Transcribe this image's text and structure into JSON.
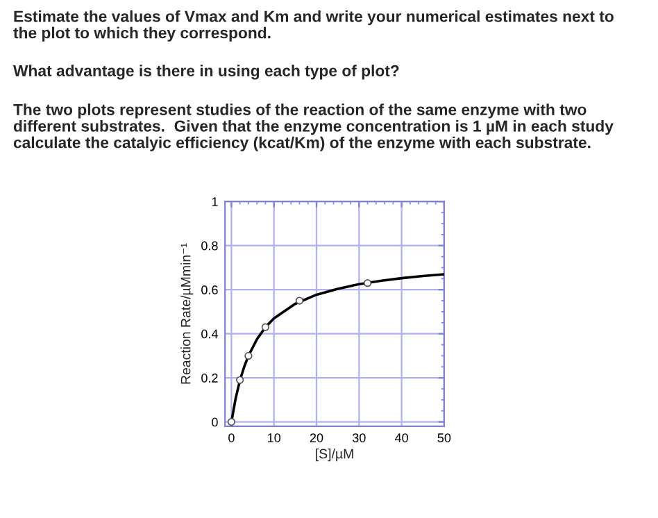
{
  "chart_data": {
    "type": "scatter",
    "annotations": [
      "Estimate the values of Vmax and Km and write your numerical estimates next to\nthe plot to which they correspond.",
      "What advantage is there in using each type of plot?",
      "The two plots represent studies of the reaction of the same enzyme with two\ndifferent substrates.  Given that the enzyme concentration is 1 µM in each study\ncalculate the catalyic efficiency (kcat/Km) of the enzyme with each substrate."
    ],
    "xlabel": "[S]/µM",
    "ylabel": "Reaction Rate/µMmin⁻¹",
    "series": [
      {
        "type": "line",
        "color": "#000000",
        "marker": "none",
        "x": [
          0,
          1,
          2,
          3,
          4,
          6,
          8,
          10,
          15,
          20,
          25,
          30,
          35,
          40,
          45,
          50
        ],
        "values": [
          0,
          0.107,
          0.188,
          0.25,
          0.3,
          0.375,
          0.43,
          0.47,
          0.536,
          0.577,
          0.604,
          0.625,
          0.64,
          0.652,
          0.662,
          0.67
        ]
      },
      {
        "color": "#555555",
        "marker": "circle",
        "x": [
          0,
          2,
          4,
          8,
          16,
          32
        ],
        "values": [
          0,
          0.19,
          0.3,
          0.43,
          0.55,
          0.63
        ]
      }
    ],
    "xlim": [
      -1.5,
      50
    ],
    "xticks": [
      0,
      10,
      20,
      30,
      40,
      50
    ],
    "ylim": [
      -0.02,
      1
    ],
    "yticks": [
      0,
      0.2,
      0.4,
      0.6,
      0.8,
      1
    ],
    "grid": true
  }
}
